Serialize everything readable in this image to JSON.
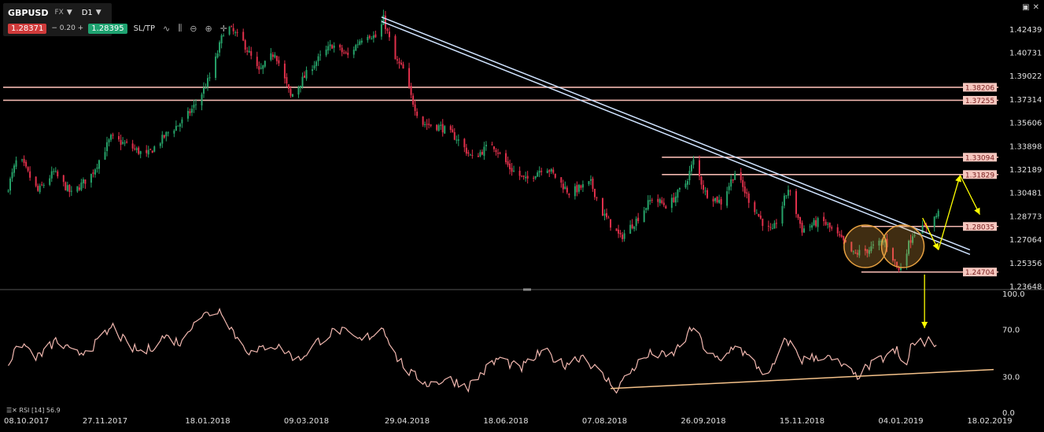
{
  "header": {
    "symbol": "GBPUSD",
    "market": "FX",
    "timeframe": "D1",
    "bid": "1.28371",
    "spread": "0.20",
    "ask": "1.28395",
    "sltp_label": "SL/TP"
  },
  "rsi_label": "RSI [14] 56.9",
  "colors": {
    "background": "#000000",
    "bull": "#26a269",
    "bear": "#e0304b",
    "level_line": "#f2b8b0",
    "trend_line": "#cfe3ff",
    "rsi_line": "#f2b8b0",
    "rsi_trend": "#f5c28a",
    "circle": "#e6a040",
    "arrow": "#ffff00"
  },
  "chart_data": [
    {
      "type": "candlestick",
      "instrument": "GBPUSD",
      "timeframe": "D1",
      "x_start": "2017-10-08",
      "x_end": "2019-02-20",
      "x_tick_labels": [
        "08.10.2017",
        "27.11.2017",
        "18.01.2018",
        "09.03.2018",
        "29.04.2018",
        "18.06.2018",
        "07.08.2018",
        "26.09.2018",
        "15.11.2018",
        "04.01.2019",
        "18.02.2019"
      ],
      "y_tick_labels": [
        "1.42439",
        "1.40731",
        "1.39022",
        "1.37314",
        "1.35606",
        "1.33898",
        "1.32189",
        "1.30481",
        "1.28773",
        "1.27064",
        "1.25356",
        "1.23648"
      ],
      "ylim": [
        1.2365,
        1.4355
      ],
      "price_path": [
        [
          "2017-10-08",
          1.305
        ],
        [
          "2017-10-14",
          1.332
        ],
        [
          "2017-10-24",
          1.306
        ],
        [
          "2017-11-01",
          1.32
        ],
        [
          "2017-11-10",
          1.304
        ],
        [
          "2017-11-20",
          1.318
        ],
        [
          "2017-11-30",
          1.345
        ],
        [
          "2017-12-08",
          1.34
        ],
        [
          "2017-12-18",
          1.332
        ],
        [
          "2017-12-29",
          1.349
        ],
        [
          "2018-01-06",
          1.358
        ],
        [
          "2018-01-13",
          1.372
        ],
        [
          "2018-01-20",
          1.392
        ],
        [
          "2018-01-27",
          1.428
        ],
        [
          "2018-02-05",
          1.415
        ],
        [
          "2018-02-13",
          1.393
        ],
        [
          "2018-02-21",
          1.408
        ],
        [
          "2018-03-01",
          1.375
        ],
        [
          "2018-03-12",
          1.398
        ],
        [
          "2018-03-22",
          1.413
        ],
        [
          "2018-03-30",
          1.405
        ],
        [
          "2018-04-08",
          1.422
        ],
        [
          "2018-04-14",
          1.418
        ],
        [
          "2018-04-17",
          1.432
        ],
        [
          "2018-04-23",
          1.402
        ],
        [
          "2018-04-27",
          1.395
        ],
        [
          "2018-05-01",
          1.375
        ],
        [
          "2018-05-06",
          1.356
        ],
        [
          "2018-05-16",
          1.353
        ],
        [
          "2018-05-24",
          1.345
        ],
        [
          "2018-06-01",
          1.33
        ],
        [
          "2018-06-11",
          1.341
        ],
        [
          "2018-06-20",
          1.323
        ],
        [
          "2018-06-28",
          1.314
        ],
        [
          "2018-07-08",
          1.325
        ],
        [
          "2018-07-20",
          1.305
        ],
        [
          "2018-07-31",
          1.312
        ],
        [
          "2018-08-06",
          1.29
        ],
        [
          "2018-08-15",
          1.272
        ],
        [
          "2018-08-23",
          1.285
        ],
        [
          "2018-08-31",
          1.301
        ],
        [
          "2018-09-08",
          1.295
        ],
        [
          "2018-09-17",
          1.312
        ],
        [
          "2018-09-21",
          1.328
        ],
        [
          "2018-09-27",
          1.305
        ],
        [
          "2018-10-05",
          1.298
        ],
        [
          "2018-10-12",
          1.32
        ],
        [
          "2018-10-19",
          1.3
        ],
        [
          "2018-10-27",
          1.281
        ],
        [
          "2018-10-31",
          1.276
        ],
        [
          "2018-11-08",
          1.308
        ],
        [
          "2018-11-15",
          1.278
        ],
        [
          "2018-11-25",
          1.285
        ],
        [
          "2018-12-04",
          1.272
        ],
        [
          "2018-12-11",
          1.26
        ],
        [
          "2018-12-18",
          1.263
        ],
        [
          "2018-12-27",
          1.27
        ],
        [
          "2019-01-03",
          1.248
        ],
        [
          "2019-01-10",
          1.275
        ],
        [
          "2019-01-17",
          1.28
        ],
        [
          "2019-01-23",
          1.29
        ]
      ],
      "horizontal_levels": [
        {
          "value": 1.38206,
          "label": "1.38206",
          "span": "full"
        },
        {
          "value": 1.37255,
          "label": "1.37255",
          "span": "full"
        },
        {
          "value": 1.33094,
          "label": "1.33094",
          "span": "from-2018-09-05"
        },
        {
          "value": 1.31829,
          "label": "1.31829",
          "span": "from-2018-09-05"
        },
        {
          "value": 1.28035,
          "label": "1.28035",
          "span": "from-2018-12-15"
        },
        {
          "value": 1.24704,
          "label": "1.24704",
          "span": "from-2018-12-15"
        }
      ],
      "trendlines": [
        {
          "from": [
            "2018-04-16",
            1.4334
          ],
          "to": [
            "2019-02-08",
            1.2632
          ]
        },
        {
          "from": [
            "2018-04-16",
            1.4302
          ],
          "to": [
            "2019-02-08",
            1.2599
          ]
        }
      ],
      "circles": [
        {
          "center": [
            "2018-12-17",
            1.2658
          ]
        },
        {
          "center": [
            "2019-01-05",
            1.2658
          ]
        }
      ],
      "arrows": [
        {
          "from": [
            "2019-01-15",
            1.2865
          ],
          "to": [
            "2019-01-23",
            1.2632
          ]
        },
        {
          "from": [
            "2019-01-23",
            1.2632
          ],
          "to": [
            "2019-02-03",
            1.3178
          ]
        },
        {
          "from": [
            "2019-02-03",
            1.3178
          ],
          "to": [
            "2019-02-13",
            1.289
          ]
        },
        {
          "from": [
            "2019-01-16",
            1.2452
          ],
          "to": [
            "2019-01-16",
            1.206
          ]
        }
      ]
    },
    {
      "type": "line",
      "indicator": "RSI",
      "period": 14,
      "last_value": 56.9,
      "y_tick_labels": [
        "100.0",
        "70.0",
        "30.0",
        "0.0"
      ],
      "ylim": [
        0,
        100
      ],
      "rsi_path": [
        [
          "2017-10-08",
          40
        ],
        [
          "2017-10-16",
          58
        ],
        [
          "2017-10-24",
          46
        ],
        [
          "2017-11-02",
          60
        ],
        [
          "2017-11-12",
          48
        ],
        [
          "2017-11-22",
          57
        ],
        [
          "2017-12-01",
          72
        ],
        [
          "2017-12-09",
          55
        ],
        [
          "2017-12-17",
          50
        ],
        [
          "2017-12-27",
          64
        ],
        [
          "2018-01-05",
          58
        ],
        [
          "2018-01-11",
          78
        ],
        [
          "2018-01-18",
          83
        ],
        [
          "2018-01-25",
          86
        ],
        [
          "2018-02-02",
          62
        ],
        [
          "2018-02-10",
          48
        ],
        [
          "2018-02-18",
          58
        ],
        [
          "2018-02-26",
          52
        ],
        [
          "2018-03-05",
          44
        ],
        [
          "2018-03-15",
          60
        ],
        [
          "2018-03-25",
          70
        ],
        [
          "2018-04-05",
          60
        ],
        [
          "2018-04-12",
          66
        ],
        [
          "2018-04-17",
          72
        ],
        [
          "2018-04-23",
          48
        ],
        [
          "2018-05-01",
          32
        ],
        [
          "2018-05-10",
          24
        ],
        [
          "2018-05-20",
          28
        ],
        [
          "2018-05-30",
          22
        ],
        [
          "2018-06-09",
          38
        ],
        [
          "2018-06-15",
          46
        ],
        [
          "2018-06-25",
          36
        ],
        [
          "2018-07-07",
          52
        ],
        [
          "2018-07-17",
          40
        ],
        [
          "2018-07-27",
          48
        ],
        [
          "2018-08-05",
          32
        ],
        [
          "2018-08-13",
          20
        ],
        [
          "2018-08-23",
          40
        ],
        [
          "2018-08-31",
          50
        ],
        [
          "2018-09-09",
          46
        ],
        [
          "2018-09-16",
          60
        ],
        [
          "2018-09-21",
          72
        ],
        [
          "2018-09-28",
          50
        ],
        [
          "2018-10-05",
          42
        ],
        [
          "2018-10-12",
          58
        ],
        [
          "2018-10-20",
          44
        ],
        [
          "2018-10-29",
          30
        ],
        [
          "2018-11-07",
          62
        ],
        [
          "2018-11-15",
          44
        ],
        [
          "2018-11-25",
          48
        ],
        [
          "2018-12-05",
          40
        ],
        [
          "2018-12-12",
          30
        ],
        [
          "2018-12-22",
          42
        ],
        [
          "2019-01-02",
          52
        ],
        [
          "2019-01-06",
          32
        ],
        [
          "2019-01-09",
          56
        ],
        [
          "2019-01-17",
          60
        ],
        [
          "2019-01-22",
          57
        ]
      ],
      "trendline": {
        "from": [
          "2018-08-10",
          20
        ],
        "to": [
          "2019-02-20",
          36
        ]
      }
    }
  ]
}
